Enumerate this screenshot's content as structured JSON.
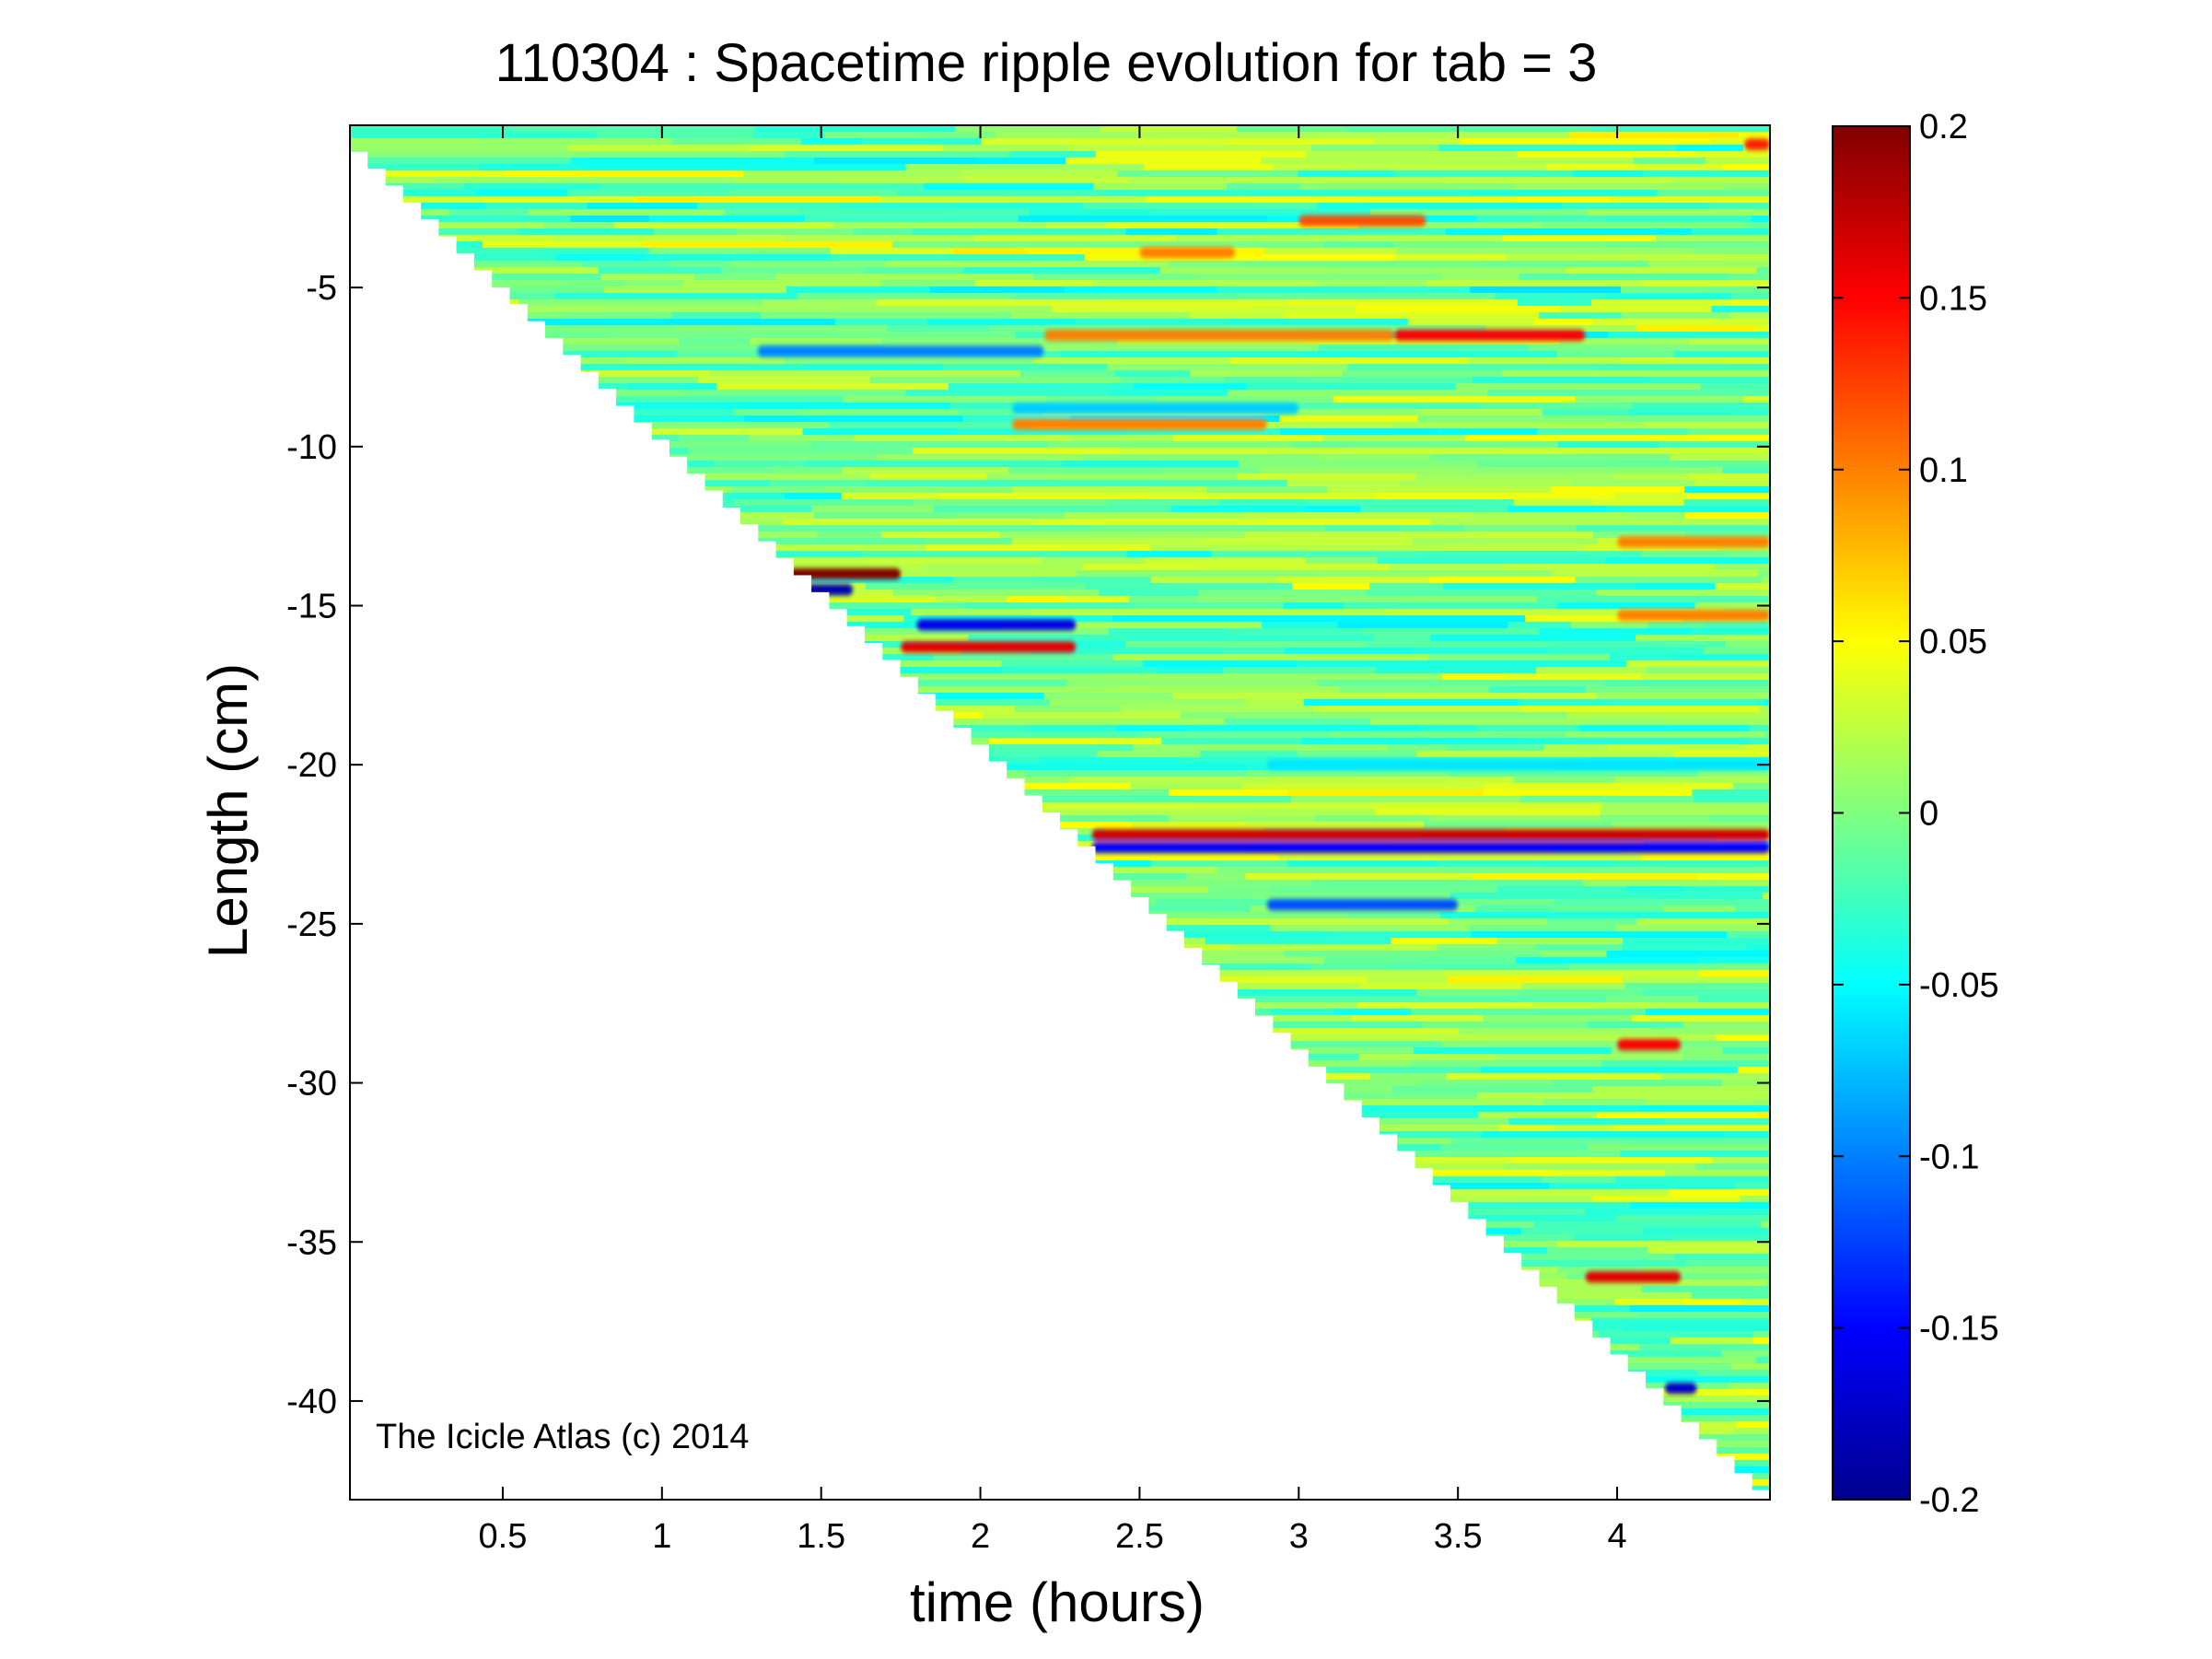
{
  "figure": {
    "title": "110304 : Spacetime ripple evolution for tab = 3",
    "xlabel": "time (hours)",
    "ylabel": "Length (cm)",
    "watermark": "The Icicle Atlas (c) 2014"
  },
  "chart_data": {
    "type": "heatmap",
    "title": "110304 : Spacetime ripple evolution for tab = 3",
    "xlabel": "time (hours)",
    "ylabel": "Length (cm)",
    "xlim": [
      0.02,
      4.48
    ],
    "ylim": [
      -43.1,
      0.1
    ],
    "xticks": [
      0.5,
      1,
      1.5,
      2,
      2.5,
      3,
      3.5,
      4
    ],
    "xtick_labels": [
      "0.5",
      "1",
      "1.5",
      "2",
      "2.5",
      "3",
      "3.5",
      "4"
    ],
    "yticks": [
      -5,
      -10,
      -15,
      -20,
      -25,
      -30,
      -35,
      -40
    ],
    "ytick_labels": [
      "-5",
      "-10",
      "-15",
      "-20",
      "-25",
      "-30",
      "-35",
      "-40"
    ],
    "grid": false,
    "colormap": "jet",
    "clim": [
      -0.2,
      0.2
    ],
    "colorbar": {
      "position": "right",
      "ticks": [
        0.2,
        0.15,
        0.1,
        0.05,
        0,
        -0.05,
        -0.1,
        -0.15,
        -0.2
      ],
      "tick_labels": [
        "0.2",
        "0.15",
        "0.1",
        "0.05",
        "0",
        "-0.05",
        "-0.1",
        "-0.15",
        "-0.2"
      ]
    },
    "data_boundary": {
      "description": "icicle tip: data exists only above this line",
      "points": [
        [
          0.02,
          -0.2
        ],
        [
          4.48,
          -42.8
        ]
      ]
    },
    "ripple_features": [
      {
        "t_start": 1.4,
        "t_end": 1.75,
        "length": -14.0,
        "amplitude": 0.2
      },
      {
        "t_start": 1.4,
        "t_end": 1.6,
        "length": -14.5,
        "amplitude": -0.18
      },
      {
        "t_start": 1.8,
        "t_end": 2.3,
        "length": -15.6,
        "amplitude": -0.16
      },
      {
        "t_start": 1.75,
        "t_end": 2.3,
        "length": -16.3,
        "amplitude": 0.16
      },
      {
        "t_start": 2.35,
        "t_end": 4.48,
        "length": -22.2,
        "amplitude": 0.17
      },
      {
        "t_start": 2.35,
        "t_end": 4.48,
        "length": -22.6,
        "amplitude": -0.15
      },
      {
        "t_start": 3.3,
        "t_end": 3.9,
        "length": -6.5,
        "amplitude": 0.15
      },
      {
        "t_start": 2.2,
        "t_end": 3.3,
        "length": -6.5,
        "amplitude": 0.1
      },
      {
        "t_start": 1.3,
        "t_end": 2.2,
        "length": -7.0,
        "amplitude": -0.1
      },
      {
        "t_start": 2.1,
        "t_end": 2.9,
        "length": -9.3,
        "amplitude": 0.1
      },
      {
        "t_start": 2.1,
        "t_end": 3.0,
        "length": -8.8,
        "amplitude": -0.07
      },
      {
        "t_start": 3.0,
        "t_end": 3.4,
        "length": -2.9,
        "amplitude": 0.12
      },
      {
        "t_start": 2.5,
        "t_end": 2.8,
        "length": -3.9,
        "amplitude": 0.1
      },
      {
        "t_start": 4.4,
        "t_end": 4.48,
        "length": -0.5,
        "amplitude": 0.14
      },
      {
        "t_start": 2.9,
        "t_end": 4.48,
        "length": -20.0,
        "amplitude": -0.06
      },
      {
        "t_start": 2.9,
        "t_end": 3.5,
        "length": -24.4,
        "amplitude": -0.12
      },
      {
        "t_start": 3.9,
        "t_end": 4.2,
        "length": -36.1,
        "amplitude": 0.16
      },
      {
        "t_start": 4.0,
        "t_end": 4.2,
        "length": -28.8,
        "amplitude": 0.15
      },
      {
        "t_start": 4.15,
        "t_end": 4.25,
        "length": -39.6,
        "amplitude": -0.17
      },
      {
        "t_start": 4.0,
        "t_end": 4.48,
        "length": -15.3,
        "amplitude": 0.1
      },
      {
        "t_start": 4.0,
        "t_end": 4.48,
        "length": -13.0,
        "amplitude": 0.1
      }
    ]
  }
}
